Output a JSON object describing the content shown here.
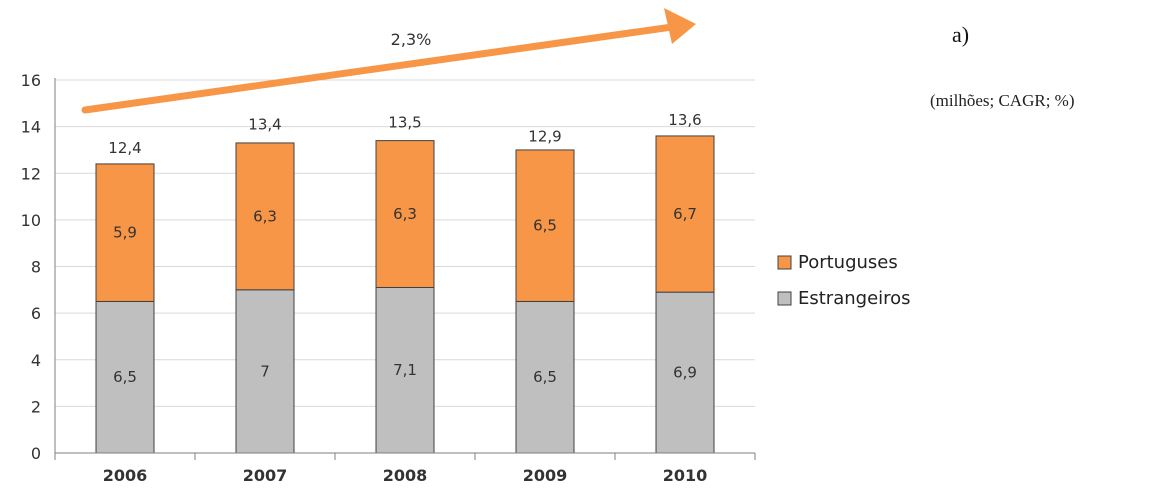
{
  "chart_data": {
    "type": "bar",
    "stacked": true,
    "categories": [
      "2006",
      "2007",
      "2008",
      "2009",
      "2010"
    ],
    "series": [
      {
        "name": "Estrangeiros",
        "values": [
          6.5,
          7,
          7.1,
          6.5,
          6.9
        ],
        "labels": [
          "6,5",
          "7",
          "7,1",
          "6,5",
          "6,9"
        ],
        "color": "#bfbfbf"
      },
      {
        "name": "Portuguses",
        "values": [
          5.9,
          6.3,
          6.3,
          6.5,
          6.7
        ],
        "labels": [
          "5,9",
          "6,3",
          "6,3",
          "6,5",
          "6,7"
        ],
        "color": "#f79646"
      }
    ],
    "totals": [
      12.4,
      13.4,
      13.5,
      12.9,
      13.6
    ],
    "total_labels": [
      "12,4",
      "13,4",
      "13,5",
      "12,9",
      "13,6"
    ],
    "ylim": [
      0,
      16
    ],
    "yticks": [
      0,
      2,
      4,
      6,
      8,
      10,
      12,
      14,
      16
    ],
    "grid": true,
    "legend": "right",
    "legend_order": [
      "Portuguses",
      "Estrangeiros"
    ],
    "annotation": "2,3%",
    "arrow_color": "#f79646"
  },
  "panel_label": "a)",
  "units_note": "(milhões; CAGR; %)"
}
